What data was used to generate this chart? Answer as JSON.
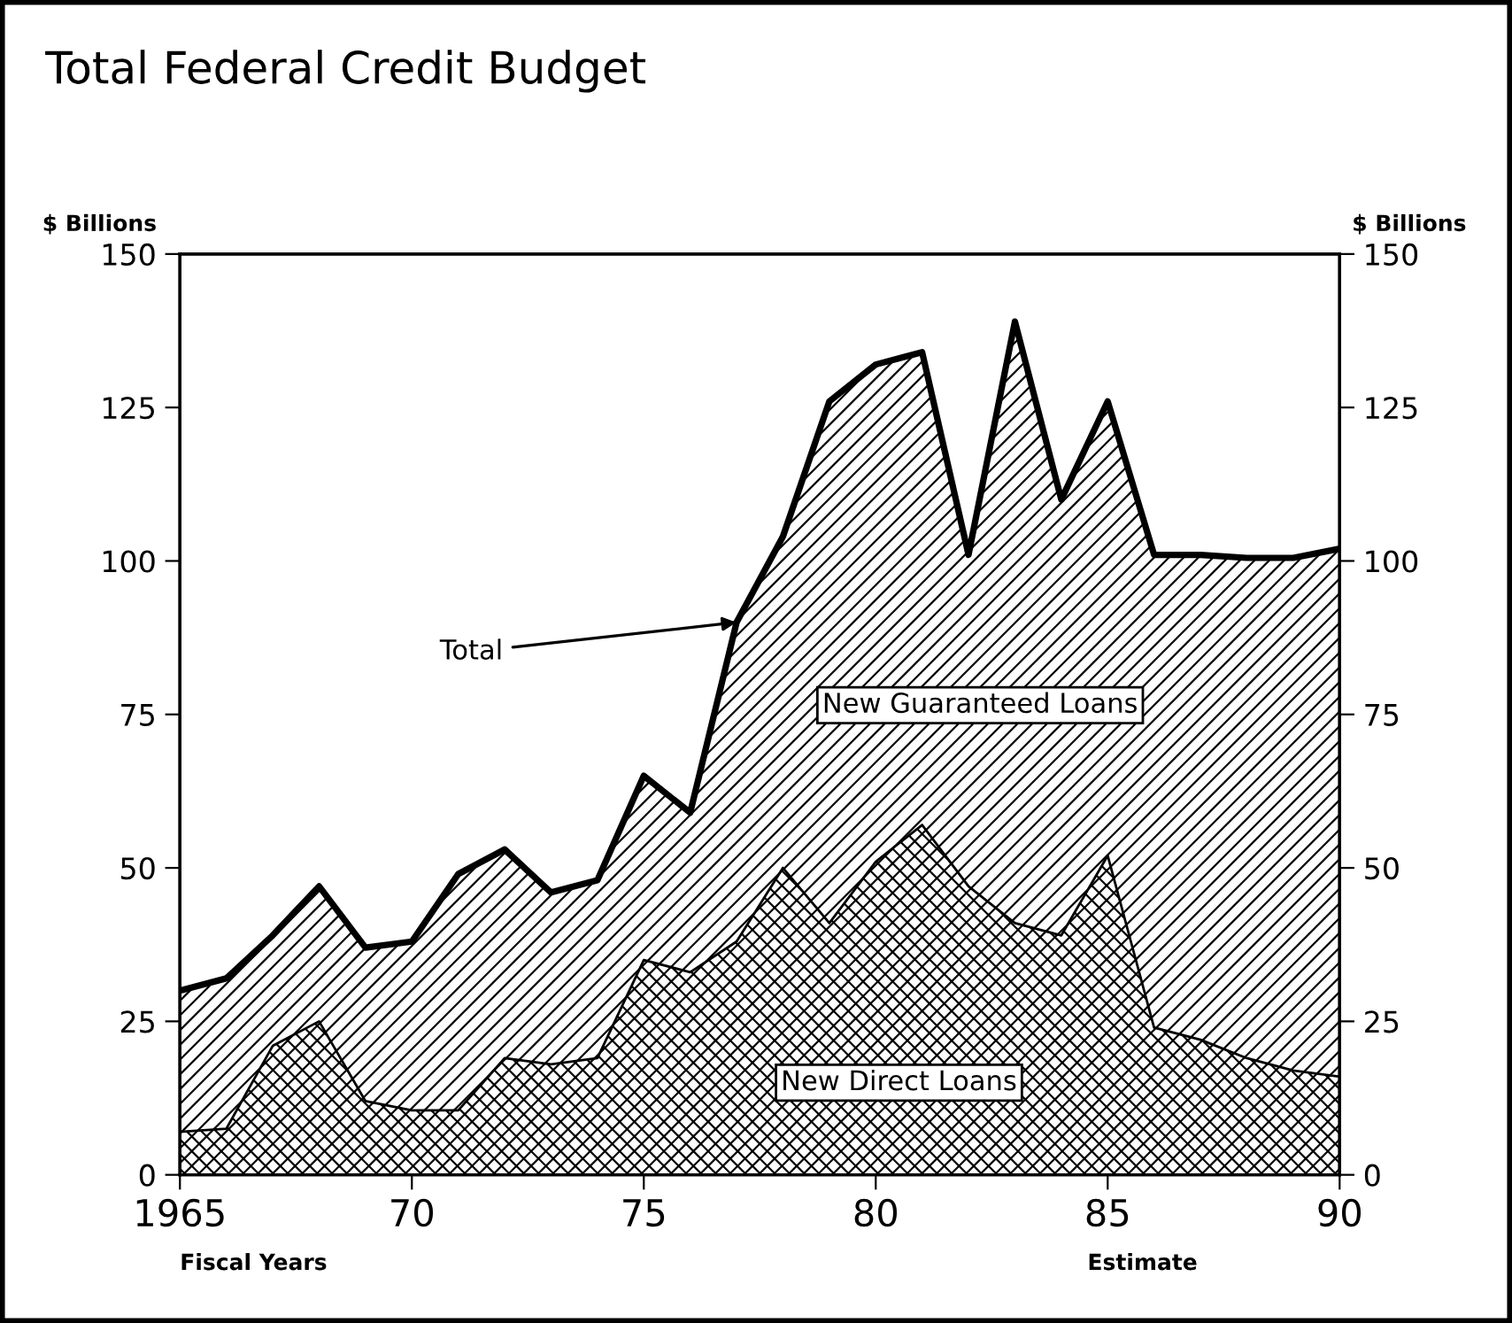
{
  "chart_data": {
    "type": "area",
    "stacked": true,
    "title": "Total Federal Credit Budget",
    "ylabel": "$ Billions",
    "y2label": "$ Billions",
    "xlabel": "Fiscal Years",
    "x": [
      1965,
      1966,
      1967,
      1968,
      1969,
      1970,
      1971,
      1972,
      1973,
      1974,
      1975,
      1976,
      1977,
      1978,
      1979,
      1980,
      1981,
      1982,
      1983,
      1984,
      1985,
      1986,
      1987,
      1988,
      1989,
      1990
    ],
    "series": [
      {
        "name": "New Direct Loans",
        "color": "#000000",
        "values": [
          7,
          7.5,
          21,
          25,
          12,
          10.5,
          10.5,
          19,
          18,
          19,
          35,
          33,
          38,
          50,
          41,
          51,
          57,
          47,
          41,
          39,
          52,
          24,
          22,
          19,
          17,
          16
        ]
      },
      {
        "name": "New Guaranteed Loans",
        "color": "#000000",
        "values": [
          23,
          24.5,
          18,
          22,
          25,
          27.5,
          38.5,
          34,
          28,
          29,
          30,
          26,
          52,
          54,
          85,
          81,
          77,
          54,
          98,
          71,
          74,
          77,
          79,
          81.5,
          83.5,
          86
        ]
      }
    ],
    "xlim": [
      1965,
      1990
    ],
    "xticks": [
      1965,
      {
        "value": 1970,
        "label": "70"
      },
      {
        "value": 1975,
        "label": "75"
      },
      {
        "value": 1980,
        "label": "80"
      },
      {
        "value": 1985,
        "label": "85"
      },
      {
        "value": 1990,
        "label": "90"
      }
    ],
    "ylim": [
      0,
      150
    ],
    "yticks": [
      0,
      25,
      50,
      75,
      100,
      125,
      150
    ],
    "y2lim": [
      0,
      150
    ],
    "y2ticks": [
      0,
      25,
      50,
      75,
      100,
      125,
      150
    ],
    "annotations": [
      {
        "text": "Total",
        "x": 1977,
        "y": 90
      },
      "Estimate"
    ],
    "legend": false,
    "grid": false
  }
}
